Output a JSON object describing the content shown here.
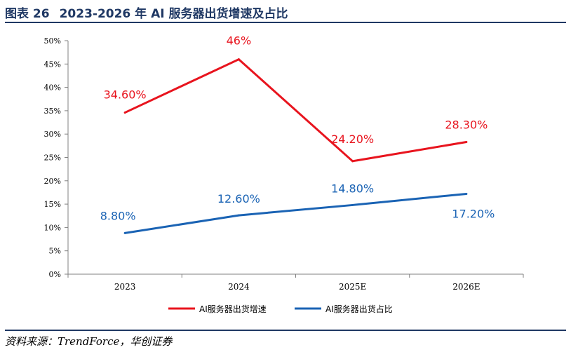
{
  "header": {
    "figure_number": "图表 26",
    "title": "2023-2026 年 AI 服务器出货增速及占比"
  },
  "source": "资料来源：TrendForce，华创证券",
  "chart_data": {
    "type": "line",
    "title": "2023-2026 年 AI 服务器出货增速及占比",
    "categories": [
      "2023",
      "2024",
      "2025E",
      "2026E"
    ],
    "ylim": [
      0,
      50
    ],
    "y_ticks": [
      "0%",
      "5%",
      "10%",
      "15%",
      "20%",
      "25%",
      "30%",
      "35%",
      "40%",
      "45%",
      "50%"
    ],
    "grid": false,
    "legend_position": "bottom",
    "series": [
      {
        "name": "AI服务器出货增速",
        "color": "#e8141e",
        "values": [
          34.6,
          46,
          24.2,
          28.3
        ],
        "labels": [
          "34.60%",
          "46%",
          "24.20%",
          "28.30%"
        ]
      },
      {
        "name": "AI服务器出货占比",
        "color": "#1a63b4",
        "values": [
          8.8,
          12.6,
          14.8,
          17.2
        ],
        "labels": [
          "8.80%",
          "12.60%",
          "14.80%",
          "17.20%"
        ]
      }
    ]
  }
}
